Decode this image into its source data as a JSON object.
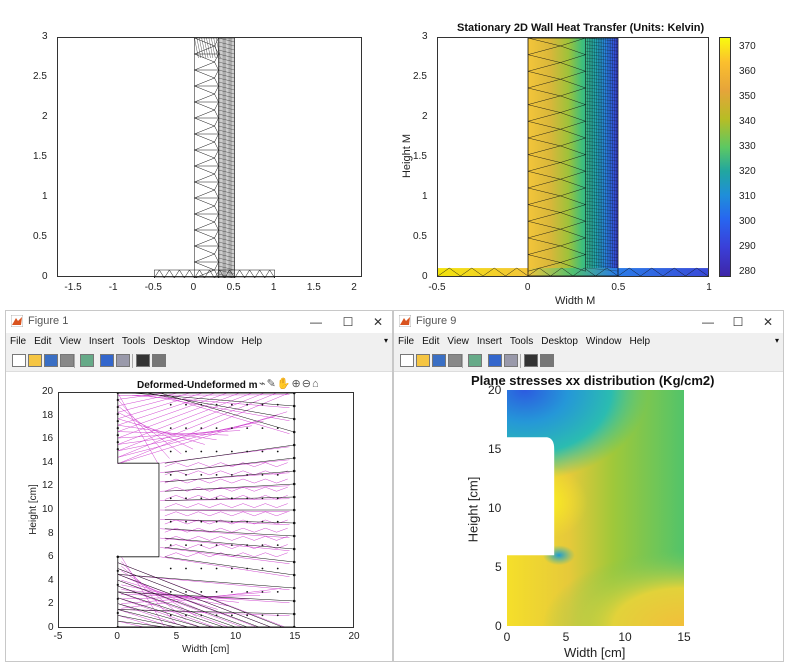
{
  "top_left_plot": {
    "y_ticks": [
      "3",
      "2.5",
      "2",
      "1.5",
      "1",
      "0.5",
      "0"
    ],
    "x_ticks": [
      "-1.5",
      "-1",
      "-0.5",
      "0",
      "0.5",
      "1",
      "1.5",
      "2"
    ]
  },
  "top_right_plot": {
    "title": "Stationary 2D Wall Heat Transfer (Units: Kelvin)",
    "xlabel": "Width M",
    "ylabel": "Height M",
    "y_ticks": [
      "3",
      "2.5",
      "2",
      "1.5",
      "1",
      "0.5",
      "0"
    ],
    "x_ticks": [
      "-0.5",
      "0",
      "0.5",
      "1"
    ],
    "colorbar_ticks": [
      "370",
      "360",
      "350",
      "340",
      "330",
      "320",
      "310",
      "300",
      "290",
      "280"
    ]
  },
  "figure1": {
    "window_title": "Figure 1",
    "menu": [
      "File",
      "Edit",
      "View",
      "Insert",
      "Tools",
      "Desktop",
      "Window",
      "Help"
    ],
    "plot_title": "Deformed-Undeformed m",
    "xlabel": "Width [cm]",
    "ylabel": "Height [cm]",
    "y_ticks": [
      "20",
      "18",
      "16",
      "14",
      "12",
      "10",
      "8",
      "6",
      "4",
      "2",
      "0"
    ],
    "x_ticks": [
      "-5",
      "0",
      "5",
      "10",
      "15",
      "20"
    ]
  },
  "figure9": {
    "window_title": "Figure 9",
    "menu": [
      "File",
      "Edit",
      "View",
      "Insert",
      "Tools",
      "Desktop",
      "Window",
      "Help"
    ],
    "plot_title": "Plane stresses xx distribution (Kg/cm2)",
    "xlabel": "Width [cm]",
    "ylabel": "Height [cm]",
    "y_ticks": [
      "20",
      "15",
      "10",
      "5",
      "0"
    ],
    "x_ticks": [
      "0",
      "5",
      "10",
      "15"
    ]
  },
  "window_controls": {
    "minimize": "—",
    "maximize": "☐",
    "close": "✕"
  },
  "chart_data": [
    {
      "type": "heatmap",
      "title": "",
      "xlim": [
        -1.7,
        2.1
      ],
      "ylim": [
        0,
        3
      ],
      "note_series": []
    },
    {
      "type": "heatmap",
      "title": "Stationary 2D Wall Heat Transfer (Units: Kelvin)",
      "xlabel": "Width M",
      "ylabel": "Height M",
      "xlim": [
        -0.5,
        1
      ],
      "ylim": [
        0,
        3
      ],
      "colorbar_range": [
        278,
        374
      ]
    },
    {
      "type": "scatter",
      "title": "Deformed-Undeformed m",
      "xlabel": "Width [cm]",
      "ylabel": "Height [cm]",
      "xlim": [
        -5,
        20
      ],
      "ylim": [
        0,
        20
      ]
    },
    {
      "type": "heatmap",
      "title": "Plane stresses xx distribution (Kg/cm2)",
      "xlabel": "Width [cm]",
      "ylabel": "Height [cm]",
      "xlim": [
        0,
        15
      ],
      "ylim": [
        0,
        20
      ]
    }
  ]
}
